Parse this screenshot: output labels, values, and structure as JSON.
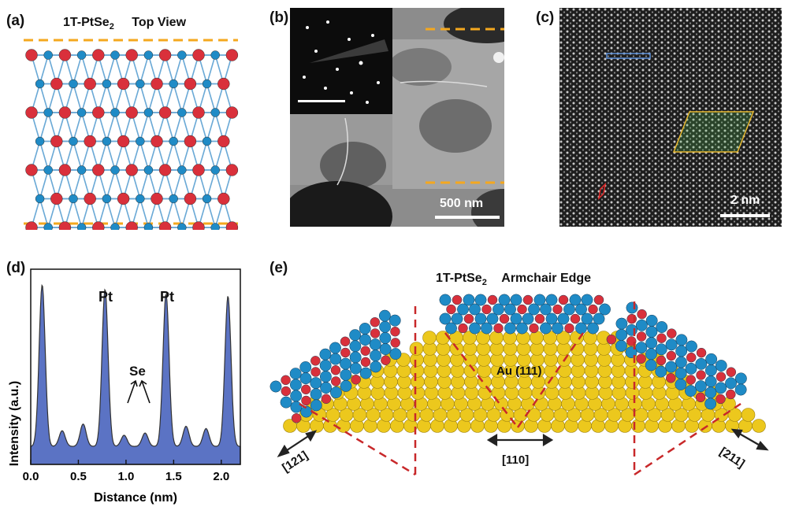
{
  "panels": {
    "a": {
      "label": "(a)",
      "title_formula": "1T-PtSe",
      "title_sub": "2",
      "title_view": "Top View"
    },
    "b": {
      "label": "(b)",
      "scalebar": "500 nm"
    },
    "c": {
      "label": "(c)",
      "scalebar": "2 nm"
    },
    "d": {
      "label": "(d)",
      "peak_pt_1": "Pt",
      "peak_pt_2": "Pt",
      "peak_se": "Se"
    },
    "e": {
      "label": "(e)",
      "title_formula": "1T-PtSe",
      "title_sub": "2",
      "title_edge": "Armchair Edge",
      "substrate": "Au (111)",
      "dir_left": "[121]",
      "dir_center": "[110]",
      "dir_right": "[211]"
    }
  },
  "colors": {
    "pt": "#d9303b",
    "se": "#1f8bc6",
    "au": "#ecc81d",
    "dash": "#f4a81f",
    "fill": "#5b73c4",
    "red_dash": "#c8282a"
  },
  "chart_data": {
    "type": "area",
    "xlabel": "Distance (nm)",
    "ylabel": "Intensity (a.u.)",
    "xlim": [
      0,
      2.2
    ],
    "xticks": [
      "0.0",
      "0.5",
      "1.0",
      "1.5",
      "2.0"
    ],
    "x": [
      0.12,
      0.33,
      0.55,
      0.78,
      0.98,
      1.2,
      1.42,
      1.63,
      1.84,
      2.07
    ],
    "values": [
      0.8,
      0.15,
      0.18,
      0.78,
      0.13,
      0.14,
      0.76,
      0.17,
      0.16,
      0.75
    ],
    "baseline": 0.08
  }
}
